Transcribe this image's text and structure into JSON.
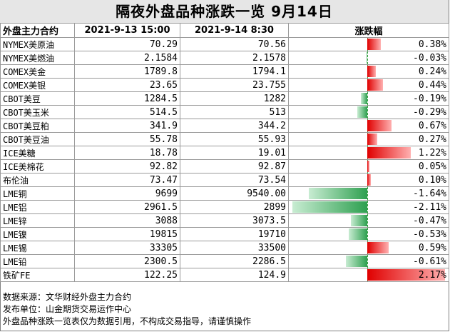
{
  "title": "隔夜外盘品种涨跌一览 9月14日",
  "headers": [
    "外盘主力合约",
    "2021-9-13 15:00",
    "2021-9-14 8:30",
    "涨跌幅"
  ],
  "rows": [
    {
      "name": "NYMEX美原油",
      "prev": "70.29",
      "curr": "70.56",
      "change_label": "0.38%",
      "change": 0.38
    },
    {
      "name": "NYMEX美燃油",
      "prev": "2.1584",
      "curr": "2.1578",
      "change_label": "-0.03%",
      "change": -0.03
    },
    {
      "name": "COMEX美金",
      "prev": "1789.8",
      "curr": "1794.1",
      "change_label": "0.24%",
      "change": 0.24
    },
    {
      "name": "COMEX美银",
      "prev": "23.65",
      "curr": "23.755",
      "change_label": "0.44%",
      "change": 0.44
    },
    {
      "name": "CBOT美豆",
      "prev": "1284.5",
      "curr": "1282",
      "change_label": "-0.19%",
      "change": -0.19
    },
    {
      "name": "CBOT美玉米",
      "prev": "514.5",
      "curr": "513",
      "change_label": "-0.29%",
      "change": -0.29
    },
    {
      "name": "CBOT美豆粕",
      "prev": "341.9",
      "curr": "344.2",
      "change_label": "0.67%",
      "change": 0.67
    },
    {
      "name": "CBOT美豆油",
      "prev": "55.78",
      "curr": "55.93",
      "change_label": "0.27%",
      "change": 0.27
    },
    {
      "name": "ICE美糖",
      "prev": "18.78",
      "curr": "19.01",
      "change_label": "1.22%",
      "change": 1.22
    },
    {
      "name": "ICE美棉花",
      "prev": "92.82",
      "curr": "92.87",
      "change_label": "0.05%",
      "change": 0.05
    },
    {
      "name": "布伦油",
      "prev": "73.47",
      "curr": "73.54",
      "change_label": "0.10%",
      "change": 0.1
    },
    {
      "name": "LME铜",
      "prev": "9699",
      "curr": "9540.00",
      "change_label": "-1.64%",
      "change": -1.64
    },
    {
      "name": "LME铝",
      "prev": "2961.5",
      "curr": "2899",
      "change_label": "-2.11%",
      "change": -2.11
    },
    {
      "name": "LME锌",
      "prev": "3088",
      "curr": "3073.5",
      "change_label": "-0.47%",
      "change": -0.47
    },
    {
      "name": "LME镍",
      "prev": "19815",
      "curr": "19710",
      "change_label": "-0.53%",
      "change": -0.53
    },
    {
      "name": "LME锡",
      "prev": "33305",
      "curr": "33500",
      "change_label": "0.59%",
      "change": 0.59
    },
    {
      "name": "LME铅",
      "prev": "2300.5",
      "curr": "2286.5",
      "change_label": "-0.61%",
      "change": -0.61
    },
    {
      "name": "铁矿FE",
      "prev": "122.25",
      "curr": "124.9",
      "change_label": "2.17%",
      "change": 2.17
    }
  ],
  "notes": [
    "数据来源：文华财经外盘主力合约",
    "发布单位：山金期货交易运作中心",
    "外盘品种涨跌一览表仅为数据引用，不构成交易指导，请谨慎操作"
  ],
  "colors": {
    "positive": "#e00000",
    "negative": "#2ea050",
    "title_bg": "#e6e6e6"
  }
}
